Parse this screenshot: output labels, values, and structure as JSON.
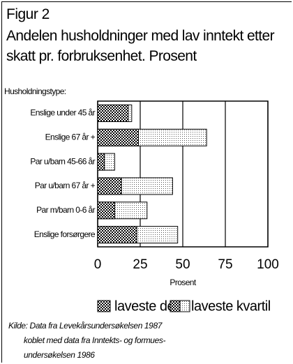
{
  "chart_data": {
    "type": "bar",
    "orientation": "horizontal",
    "figure_label": "Figur 2",
    "title": "Andelen husholdninger med lav inntekt etter skatt pr. forbruksenhet. Prosent",
    "y_label": "Husholdningstype:",
    "x_label": "Prosent",
    "categories": [
      "Enslige under 45 år",
      "Enslige 67 år +",
      "Par u/barn 45-66 år",
      "Par u/barn 67 år +",
      "Par m/barn 0-6 år",
      "Enslige forsørgere"
    ],
    "series": [
      {
        "name": "laveste desil",
        "color": "#000000",
        "values": [
          18,
          24,
          4,
          14,
          10,
          23
        ]
      },
      {
        "name": "laveste kvartil",
        "color": "#555555",
        "values": [
          20,
          64,
          10,
          44,
          29,
          47
        ]
      }
    ],
    "xlim": [
      0,
      100
    ],
    "xticks": [
      0,
      25,
      50,
      75,
      100
    ],
    "grid": true,
    "source": [
      "Kilde: Data fra Levekårsundersøkelsen 1987",
      "koblet med data fra Inntekts- og formues-",
      "undersøkelsen 1986"
    ]
  }
}
